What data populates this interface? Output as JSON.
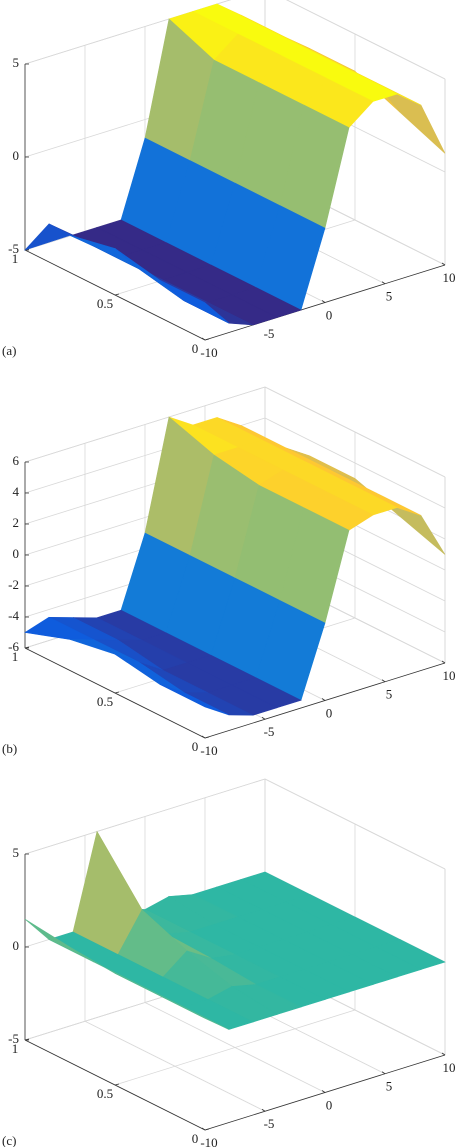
{
  "chart_data": [
    {
      "type": "surface",
      "label": "(a)",
      "x": [
        -10,
        -8,
        -6,
        -4,
        -2,
        0,
        2,
        4,
        6,
        8,
        10
      ],
      "t": [
        0,
        0.25,
        0.5,
        0.75,
        1
      ],
      "z": [
        [
          -3,
          -4.5,
          -5,
          -5,
          -5,
          -1,
          4,
          5,
          5,
          4,
          1
        ],
        [
          -3,
          -4.5,
          -5,
          -5,
          -5,
          -1,
          4,
          5,
          5,
          4,
          2
        ],
        [
          -2.5,
          -4,
          -5,
          -5,
          -5,
          -1,
          4,
          5,
          5,
          4,
          3
        ],
        [
          -3,
          -4,
          -5,
          -5,
          -5,
          -1,
          4,
          5,
          5,
          4,
          3
        ],
        [
          -5,
          -4,
          -5,
          -5,
          -5,
          -1,
          5,
          5,
          5,
          4,
          2
        ]
      ],
      "xlim": [
        -10,
        10
      ],
      "xticks": [
        -10,
        -5,
        0,
        5,
        10
      ],
      "tlim": [
        0,
        1
      ],
      "tticks": [
        0,
        0.5,
        1
      ],
      "zlim": [
        -5,
        5
      ],
      "zticks": [
        -5,
        0,
        5
      ],
      "grid": true
    },
    {
      "type": "surface",
      "label": "(b)",
      "x": [
        -10,
        -8,
        -6,
        -4,
        -2,
        0,
        2,
        4,
        6,
        8,
        10
      ],
      "t": [
        0,
        0.25,
        0.5,
        0.75,
        1
      ],
      "z": [
        [
          -4,
          -5,
          -5.5,
          -5.5,
          -5.5,
          -1,
          4.5,
          5,
          5,
          4,
          1
        ],
        [
          -4,
          -5,
          -5.5,
          -5.5,
          -5.5,
          -1,
          4.5,
          5,
          5,
          4,
          2
        ],
        [
          -3.5,
          -4.5,
          -5.5,
          -5.5,
          -5.5,
          -1,
          4.5,
          5,
          5,
          4,
          3
        ],
        [
          -4,
          -4.5,
          -5,
          -5.5,
          -5.5,
          -1,
          5,
          5,
          5,
          4,
          3
        ],
        [
          -5,
          -4.5,
          -5,
          -5.5,
          -5.5,
          -1,
          6,
          5,
          5,
          4,
          2
        ]
      ],
      "xlim": [
        -10,
        10
      ],
      "xticks": [
        -10,
        -5,
        0,
        5,
        10
      ],
      "tlim": [
        0,
        1
      ],
      "tticks": [
        0,
        0.5,
        1
      ],
      "zlim": [
        -6,
        6
      ],
      "zticks": [
        -6,
        -4,
        -2,
        0,
        2,
        4,
        6
      ],
      "grid": true
    },
    {
      "type": "surface",
      "label": "(c)",
      "x": [
        -10,
        -8,
        -6,
        -4,
        -2,
        0,
        2,
        4,
        6,
        8,
        10
      ],
      "t": [
        0,
        0.25,
        0.5,
        0.75,
        1
      ],
      "z": [
        [
          1,
          0,
          0,
          0,
          0,
          0,
          0,
          0,
          0,
          0,
          0
        ],
        [
          1,
          0,
          0,
          0.3,
          0,
          0,
          0,
          0,
          0,
          0,
          0
        ],
        [
          1,
          0,
          0,
          1,
          0.2,
          0,
          0,
          0,
          0,
          0,
          0
        ],
        [
          1.2,
          0,
          0,
          2,
          0.3,
          0,
          0,
          0,
          0,
          0,
          0
        ],
        [
          1.5,
          0,
          0,
          5,
          0.5,
          0,
          0.3,
          0,
          0,
          0,
          0
        ]
      ],
      "xlim": [
        -10,
        10
      ],
      "xticks": [
        -10,
        -5,
        0,
        5,
        10
      ],
      "tlim": [
        0,
        1
      ],
      "tticks": [
        0,
        0.5,
        1
      ],
      "zlim": [
        -5,
        5
      ],
      "zticks": [
        -5,
        0,
        5
      ],
      "grid": true
    }
  ]
}
